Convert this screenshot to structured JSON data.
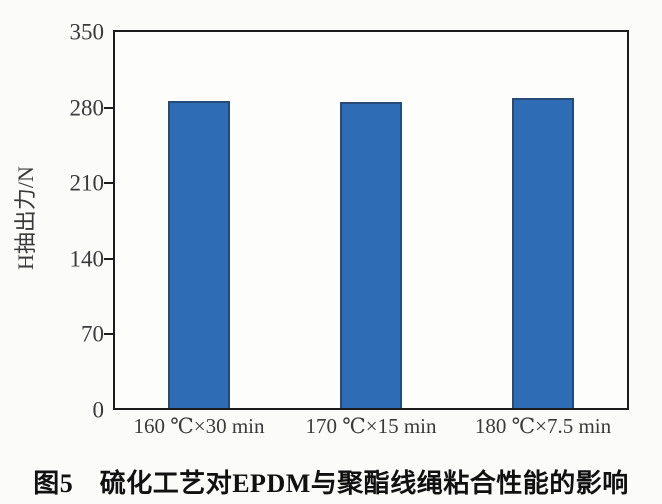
{
  "figure": {
    "caption": "图5　硫化工艺对EPDM与聚酯线绳粘合性能的影响"
  },
  "chart_data": {
    "type": "bar",
    "title": "",
    "categories": [
      "160 ℃×30 min",
      "170 ℃×15 min",
      "180 ℃×7.5 min"
    ],
    "values": [
      284,
      283,
      287
    ],
    "xlabel": "",
    "ylabel": "H抽出力/N",
    "ylim": [
      0,
      350
    ],
    "yticks": [
      0,
      70,
      140,
      210,
      280,
      350
    ],
    "bar_color": "#2e6db5",
    "bar_border_color": "#274b76",
    "axis_color": "#1c1c1c",
    "grid": false,
    "legend": false
  }
}
